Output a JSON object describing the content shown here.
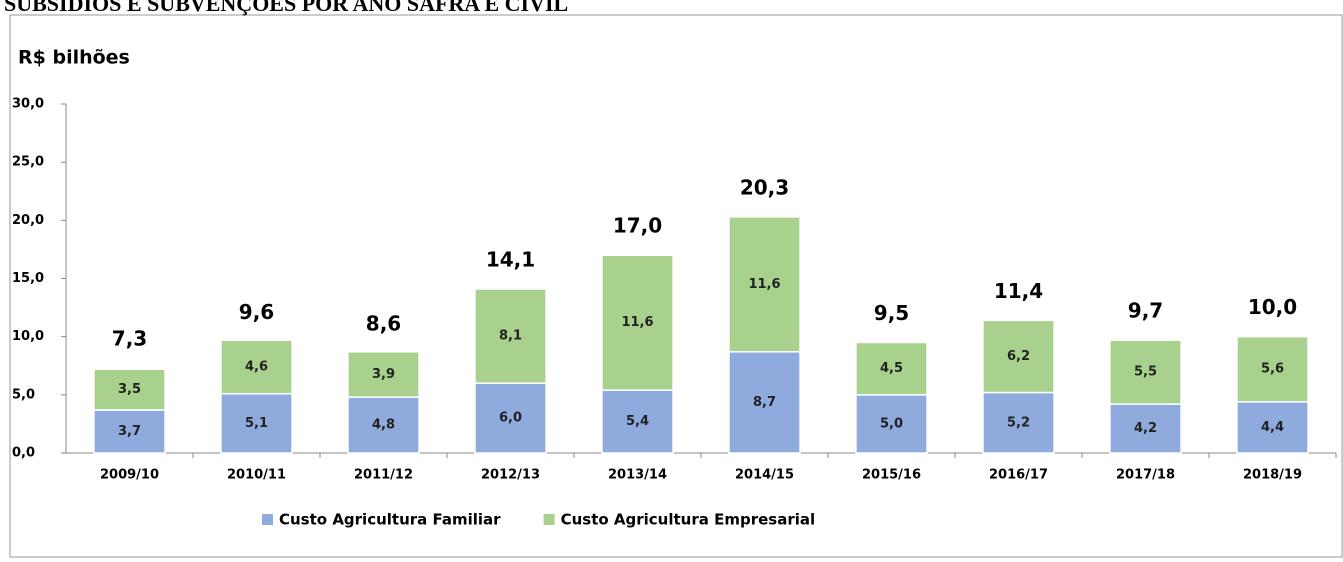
{
  "chart_data": {
    "type": "stacked_bar",
    "title": "SUBSÍDIOS E SUBVENÇÕES POR ANO SAFRA E CIVIL",
    "y_label": "R$ bilhões",
    "categories": [
      "2009/10",
      "2010/11",
      "2011/12",
      "2012/13",
      "2013/14",
      "2014/15",
      "2015/16",
      "2016/17",
      "2017/18",
      "2018/19"
    ],
    "series": [
      {
        "name": "Custo Agricultura Familiar",
        "color": "#8faadc",
        "values": [
          3.7,
          5.1,
          4.8,
          6.0,
          5.4,
          8.7,
          5.0,
          5.2,
          4.2,
          4.4
        ],
        "value_labels": [
          "3,7",
          "5,1",
          "4,8",
          "6,0",
          "5,4",
          "8,7",
          "5,0",
          "5,2",
          "4,2",
          "4,4"
        ]
      },
      {
        "name": "Custo Agricultura Empresarial",
        "color": "#a9d18e",
        "values": [
          3.5,
          4.6,
          3.9,
          8.1,
          11.6,
          11.6,
          4.5,
          6.2,
          5.5,
          5.6
        ],
        "value_labels": [
          "3,5",
          "4,6",
          "3,9",
          "8,1",
          "11,6",
          "11,6",
          "4,5",
          "6,2",
          "5,5",
          "5,6"
        ]
      }
    ],
    "totals": [
      7.3,
      9.6,
      8.6,
      14.1,
      17.0,
      20.3,
      9.5,
      11.4,
      9.7,
      10.0
    ],
    "total_labels": [
      "7,3",
      "9,6",
      "8,6",
      "14,1",
      "17,0",
      "20,3",
      "9,5",
      "11,4",
      "9,7",
      "10,0"
    ],
    "ylim": [
      0,
      30
    ],
    "yticks": [
      {
        "value": 0,
        "label": "0,0"
      },
      {
        "value": 5,
        "label": "5,0"
      },
      {
        "value": 10,
        "label": "10,0"
      },
      {
        "value": 15,
        "label": "15,0"
      },
      {
        "value": 20,
        "label": "20,0"
      },
      {
        "value": 25,
        "label": "25,0"
      },
      {
        "value": 30,
        "label": "30,0"
      }
    ],
    "legend": "bottom"
  }
}
